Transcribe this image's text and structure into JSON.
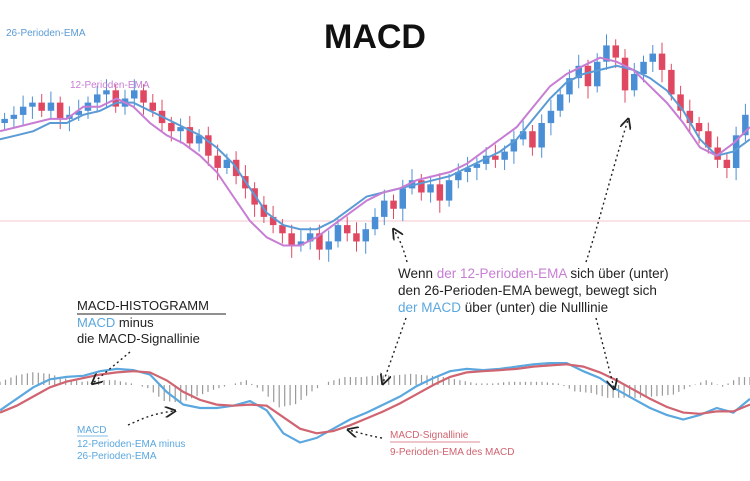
{
  "title": "MACD",
  "colors": {
    "ema26": "#5b9bd5",
    "ema12": "#c77dd4",
    "up": "#4a8fd6",
    "down": "#e04862",
    "macd": "#5ba7df",
    "signal": "#d06470",
    "histogram": "#9a9a9a",
    "text": "#222222",
    "refline": "#f3c7cf"
  },
  "labels": {
    "ema26_label": "26-Perioden-EMA",
    "ema12_label": "12-Perioden-EMA",
    "hist_title": "MACD-HISTOGRAMM",
    "hist_line2_a": "MACD",
    "hist_line2_b": " minus",
    "hist_line3": "die MACD-Signallinie",
    "macd_label": "MACD",
    "macd_sub1": "12-Perioden-EMA minus",
    "macd_sub2": "26-Perioden-EMA",
    "signal_label": "MACD-Signallinie",
    "signal_sub": "9-Perioden-EMA des MACD",
    "note1_a": "Wenn ",
    "note1_b": "der 12-Perioden-EMA",
    "note1_c": " sich über (unter)",
    "note2": "den 26-Perioden-EMA bewegt, bewegt sich",
    "note3_a": "der MACD",
    "note3_b": " über (unter) die Nulllinie"
  },
  "chart_data": [
    {
      "type": "line",
      "panel": "price",
      "series": [
        {
          "name": "26-Perioden-EMA",
          "values": [
            67,
            68,
            69,
            71,
            71,
            73,
            74,
            76,
            76,
            74,
            72,
            70,
            68,
            65,
            61,
            55,
            49,
            46,
            45,
            45,
            47,
            50,
            53,
            54,
            55,
            56,
            57,
            58,
            60,
            62,
            64,
            67,
            72,
            77,
            81,
            83,
            84,
            85,
            84,
            82,
            79,
            74,
            67,
            63,
            64,
            67
          ]
        },
        {
          "name": "12-Perioden-EMA",
          "values": [
            69,
            70,
            71,
            72,
            72,
            75,
            75,
            77,
            75,
            71,
            68,
            66,
            63,
            59,
            53,
            47,
            43,
            41,
            41,
            43,
            46,
            49,
            52,
            54,
            55,
            57,
            58,
            59,
            61,
            64,
            67,
            70,
            75,
            80,
            83,
            85,
            87,
            86,
            84,
            80,
            76,
            71,
            65,
            63,
            66,
            70
          ]
        }
      ],
      "candles": [
        72,
        73,
        75,
        76,
        74,
        76,
        72,
        73,
        74,
        76,
        78,
        79,
        75,
        77,
        79,
        76,
        74,
        71,
        69,
        70,
        66,
        68,
        63,
        60,
        62,
        58,
        55,
        51,
        48,
        46,
        44,
        41,
        42,
        44,
        40,
        42,
        46,
        44,
        42,
        45,
        48,
        52,
        50,
        55,
        57,
        54,
        56,
        52,
        57,
        59,
        60,
        61,
        63,
        62,
        64,
        67,
        69,
        65,
        71,
        74,
        78,
        82,
        85,
        80,
        86,
        90,
        87,
        79,
        83,
        86,
        88,
        84,
        78,
        74,
        71,
        69,
        65,
        62,
        60,
        68,
        73
      ]
    },
    {
      "type": "line",
      "panel": "macd",
      "series": [
        {
          "name": "MACD",
          "values": [
            -22,
            -12,
            -2,
            5,
            7,
            8,
            12,
            14,
            13,
            9,
            -6,
            -17,
            -20,
            -20,
            -18,
            -14,
            -22,
            -42,
            -50,
            -46,
            -38,
            -30,
            -24,
            -17,
            -10,
            -1,
            6,
            12,
            14,
            13,
            14,
            16,
            18,
            19,
            19,
            12,
            6,
            -4,
            -12,
            -20,
            -26,
            -30,
            -26,
            -20,
            -24,
            -12
          ]
        },
        {
          "name": "MACD-Signallinie",
          "values": [
            -24,
            -18,
            -10,
            -2,
            3,
            6,
            9,
            11,
            12,
            11,
            4,
            -6,
            -13,
            -17,
            -18,
            -17,
            -18,
            -28,
            -38,
            -42,
            -40,
            -35,
            -29,
            -23,
            -16,
            -8,
            0,
            7,
            11,
            12,
            13,
            14,
            16,
            17,
            18,
            16,
            11,
            4,
            -4,
            -12,
            -19,
            -24,
            -25,
            -23,
            -23,
            -17
          ]
        }
      ],
      "histogram": [
        2,
        6,
        8,
        7,
        4,
        2,
        3,
        3,
        1,
        -2,
        -10,
        -11,
        -7,
        -3,
        0,
        3,
        -4,
        -14,
        -12,
        -4,
        2,
        5,
        5,
        6,
        6,
        7,
        6,
        5,
        3,
        1,
        1,
        2,
        2,
        2,
        1,
        -4,
        -5,
        -8,
        -8,
        -8,
        -7,
        -6,
        -1,
        3,
        -1,
        5
      ]
    }
  ]
}
